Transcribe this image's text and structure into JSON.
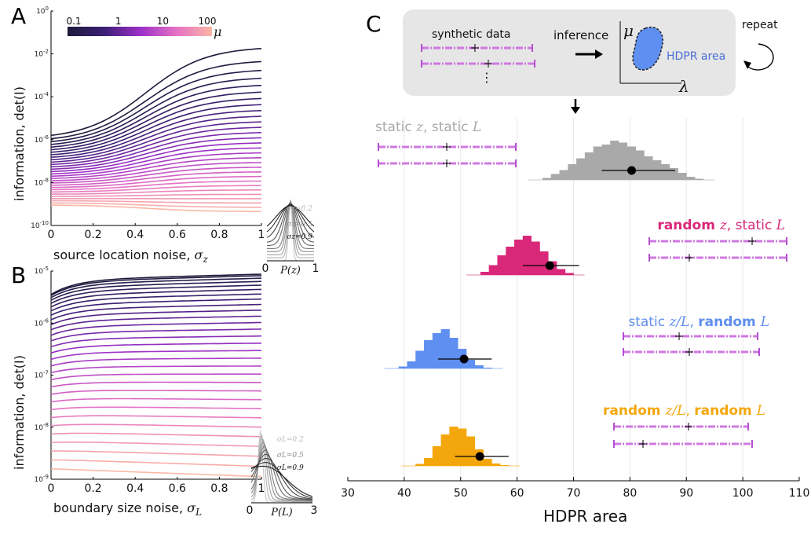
{
  "panelA": {
    "letter": "A",
    "xlabel": "source location noise, ",
    "xlabel_sym": "σ",
    "xlabel_sub": "z",
    "ylabel": "information, det(I)",
    "xticks": [
      "0",
      "0.2",
      "0.4",
      "0.6",
      "0.8",
      "1"
    ],
    "yticks": [
      {
        "base": "10",
        "exp": "0",
        "v": 0
      },
      {
        "base": "10",
        "exp": "-2",
        "v": -2
      },
      {
        "base": "10",
        "exp": "-4",
        "v": -4
      },
      {
        "base": "10",
        "exp": "-6",
        "v": -6
      },
      {
        "base": "10",
        "exp": "-8",
        "v": -8
      },
      {
        "base": "10",
        "exp": "-10",
        "v": -10
      }
    ],
    "colorbar": {
      "ticks": [
        "0.1",
        "1",
        "10",
        "100"
      ],
      "label": "μ"
    },
    "inset": {
      "labels": [
        "σz=0.2",
        "σz=0.5",
        "σz=0.9"
      ],
      "xticks": [
        "0",
        "1"
      ],
      "xlabel": "P(z)"
    }
  },
  "panelB": {
    "letter": "B",
    "xlabel": "boundary size noise, ",
    "xlabel_sym": "σ",
    "xlabel_sub": "L",
    "ylabel": "information, det(I)",
    "xticks": [
      "0",
      "0.2",
      "0.4",
      "0.6",
      "0.8",
      "1"
    ],
    "yticks": [
      {
        "base": "10",
        "exp": "-5",
        "v": -5
      },
      {
        "base": "10",
        "exp": "-6",
        "v": -6
      },
      {
        "base": "10",
        "exp": "-7",
        "v": -7
      },
      {
        "base": "10",
        "exp": "-8",
        "v": -8
      },
      {
        "base": "10",
        "exp": "-9",
        "v": -9
      }
    ],
    "inset": {
      "labels": [
        "σL=0.2",
        "σL=0.5",
        "σL=0.9"
      ],
      "xticks": [
        "0",
        "3"
      ],
      "xlabel": "P(L)"
    }
  },
  "panelC": {
    "letter": "C",
    "schematic": {
      "synthetic": "synthetic data",
      "inference": "inference",
      "repeat": "repeat",
      "mu": "μ",
      "lambda": "λ",
      "hdpr": "HDPR area"
    },
    "xlabel": "HDPR area",
    "xticks": [
      "30",
      "40",
      "50",
      "60",
      "70",
      "80",
      "90",
      "100",
      "110"
    ],
    "xlim": [
      30,
      110
    ],
    "groups": [
      {
        "label": "static z, static L",
        "color": "#a9a9a9",
        "mean": 80.3,
        "ci": [
          75,
          88
        ],
        "label_parts": [
          [
            "static ",
            ""
          ],
          [
            "z",
            "i"
          ],
          [
            ", static ",
            ""
          ],
          [
            "L",
            "i"
          ]
        ]
      },
      {
        "label": "random z, static L",
        "color": "#d9287a",
        "mean": 65.8,
        "ci": [
          61,
          71
        ],
        "label_parts": [
          [
            "random ",
            "b"
          ],
          [
            "z",
            "i"
          ],
          [
            ", static ",
            ""
          ],
          [
            "L",
            "i"
          ]
        ]
      },
      {
        "label": "static z/L, random L",
        "color": "#5f8ff0",
        "mean": 50.6,
        "ci": [
          46,
          55.5
        ],
        "label_parts": [
          [
            "static ",
            ""
          ],
          [
            "z/L",
            "i"
          ],
          [
            ", ",
            ""
          ],
          [
            "random ",
            "b"
          ],
          [
            "L",
            "i"
          ]
        ]
      },
      {
        "label": "random z/L, random L",
        "color": "#f4a70c",
        "mean": 53.4,
        "ci": [
          49,
          58.5
        ],
        "label_parts": [
          [
            "random ",
            "b"
          ],
          [
            "z/L",
            "i"
          ],
          [
            ", ",
            ""
          ],
          [
            "random ",
            "b"
          ],
          [
            "L",
            "i"
          ]
        ]
      }
    ]
  },
  "chart_data": [
    {
      "type": "line",
      "panel": "A",
      "xlabel": "source location noise, σz",
      "ylabel": "information, det(I)",
      "xlim": [
        0,
        1
      ],
      "ylim_log10": [
        -10,
        0
      ],
      "yscale": "log",
      "colorbar": {
        "label": "μ",
        "range": [
          0.1,
          100
        ],
        "ticks": [
          0.1,
          1,
          10,
          100
        ]
      },
      "x": [
        0,
        0.1,
        0.2,
        0.3,
        0.4,
        0.5,
        0.6,
        0.7,
        0.8,
        0.9,
        1.0
      ],
      "curves_endpoints_log10": {
        "start_top": -5.8,
        "end_top": -1.75,
        "start_bottom": -9.05,
        "end_bottom": -9.35
      },
      "n_curves": 30
    },
    {
      "type": "line",
      "panel": "B",
      "xlabel": "boundary size noise, σL",
      "ylabel": "information, det(I)",
      "xlim": [
        0,
        1
      ],
      "ylim_log10": [
        -9,
        -5
      ],
      "yscale": "log",
      "x": [
        0,
        0.1,
        0.2,
        0.3,
        0.4,
        0.5,
        0.6,
        0.7,
        0.8,
        0.9,
        1.0
      ],
      "curves_endpoints_log10": {
        "start_top": -5.45,
        "end_top": -5.2,
        "start_bottom": -8.8,
        "end_bottom": -8.95
      },
      "n_curves": 30
    },
    {
      "type": "bar",
      "panel": "C",
      "subtype": "histogram",
      "xlabel": "HDPR area",
      "xlim": [
        30,
        110
      ],
      "xticks": [
        30,
        40,
        50,
        60,
        70,
        80,
        90,
        100,
        110
      ],
      "series": [
        {
          "name": "static z, static L",
          "bin_width": 1.5,
          "bins_start": 64.5,
          "counts": [
            0.05,
            0.15,
            0.25,
            0.4,
            0.55,
            0.7,
            0.85,
            0.9,
            1.0,
            0.95,
            0.85,
            0.75,
            0.6,
            0.5,
            0.4,
            0.3,
            0.18,
            0.08,
            0.03
          ],
          "mean": 80.3,
          "interval": [
            75,
            88
          ]
        },
        {
          "name": "random z, static L",
          "bin_width": 1.5,
          "bins_start": 53.5,
          "counts": [
            0.08,
            0.25,
            0.5,
            0.72,
            0.9,
            1.0,
            0.85,
            0.6,
            0.35,
            0.15,
            0.05
          ],
          "mean": 65.8,
          "interval": [
            61,
            71
          ]
        },
        {
          "name": "static z/L, random L",
          "bin_width": 1.5,
          "bins_start": 39,
          "counts": [
            0.05,
            0.18,
            0.45,
            0.72,
            0.9,
            1.0,
            0.78,
            0.5,
            0.22,
            0.08,
            0.02
          ],
          "mean": 50.6,
          "interval": [
            46,
            55.5
          ]
        },
        {
          "name": "random z/L, random L",
          "bin_width": 1.5,
          "bins_start": 42,
          "counts": [
            0.05,
            0.2,
            0.5,
            0.8,
            1.0,
            0.95,
            0.75,
            0.42,
            0.18,
            0.06,
            0.02
          ],
          "mean": 53.4,
          "interval": [
            49,
            58.5
          ]
        }
      ]
    }
  ]
}
